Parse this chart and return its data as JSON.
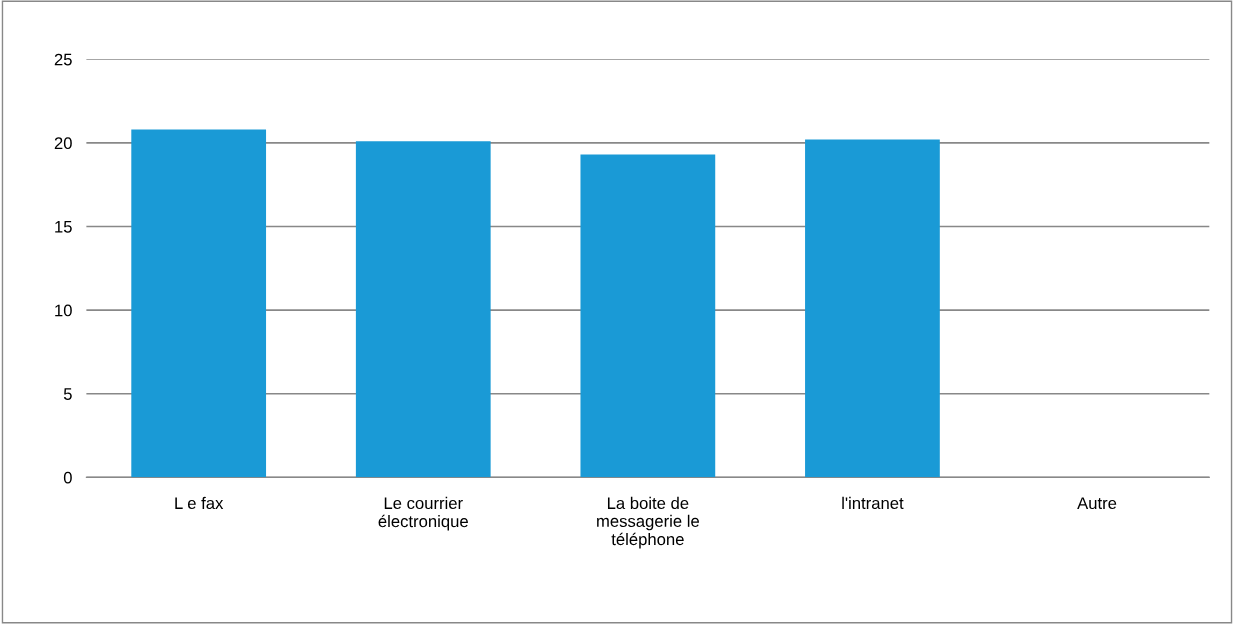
{
  "chart_data": {
    "type": "bar",
    "categories": [
      "L e fax",
      "Le courrier\nélectronique",
      "La boite de\nmessagerie le\ntéléphone",
      "l'intranet",
      "Autre"
    ],
    "values": [
      20.8,
      20.1,
      19.3,
      20.2,
      0
    ],
    "color": "#1a9ad6",
    "ylim": [
      0,
      25
    ],
    "yticks": [
      0,
      5,
      10,
      15,
      20,
      25
    ],
    "grid": "y",
    "legend": false
  }
}
